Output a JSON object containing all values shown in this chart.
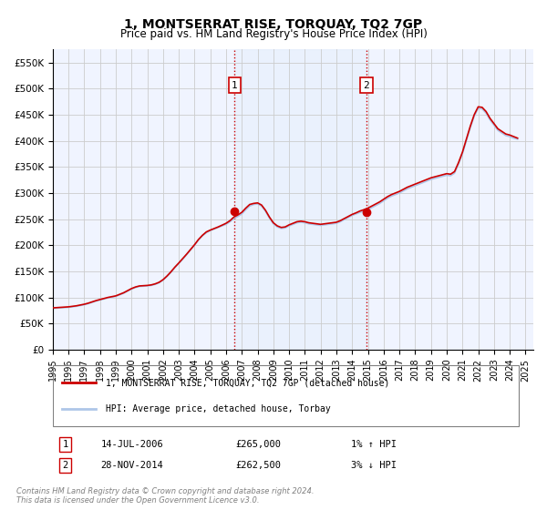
{
  "title": "1, MONTSERRAT RISE, TORQUAY, TQ2 7GP",
  "subtitle": "Price paid vs. HM Land Registry's House Price Index (HPI)",
  "xlim": [
    1995.0,
    2025.5
  ],
  "ylim": [
    0,
    575000
  ],
  "yticks": [
    0,
    50000,
    100000,
    150000,
    200000,
    250000,
    300000,
    350000,
    400000,
    450000,
    500000,
    550000
  ],
  "ytick_labels": [
    "£0",
    "£50K",
    "£100K",
    "£150K",
    "£200K",
    "£250K",
    "£300K",
    "£350K",
    "£400K",
    "£450K",
    "£500K",
    "£550K"
  ],
  "xticks": [
    1995,
    1996,
    1997,
    1998,
    1999,
    2000,
    2001,
    2002,
    2003,
    2004,
    2005,
    2006,
    2007,
    2008,
    2009,
    2010,
    2011,
    2012,
    2013,
    2014,
    2015,
    2016,
    2017,
    2018,
    2019,
    2020,
    2021,
    2022,
    2023,
    2024,
    2025
  ],
  "hpi_color": "#aec6e8",
  "price_color": "#cc0000",
  "marker_color": "#cc0000",
  "sale1_x": 2006.54,
  "sale1_y": 265000,
  "sale1_label": "1",
  "sale2_x": 2014.91,
  "sale2_y": 262500,
  "sale2_label": "2",
  "vline_color": "#cc0000",
  "vline_style": "dotted",
  "grid_color": "#cccccc",
  "bg_color": "#f0f4ff",
  "legend_line1": "1, MONTSERRAT RISE, TORQUAY, TQ2 7GP (detached house)",
  "legend_line2": "HPI: Average price, detached house, Torbay",
  "table_row1": [
    "1",
    "14-JUL-2006",
    "£265,000",
    "1% ↑ HPI"
  ],
  "table_row2": [
    "2",
    "28-NOV-2014",
    "£262,500",
    "3% ↓ HPI"
  ],
  "footer": "Contains HM Land Registry data © Crown copyright and database right 2024.\nThis data is licensed under the Open Government Licence v3.0.",
  "hpi_data": {
    "x": [
      1995.0,
      1995.25,
      1995.5,
      1995.75,
      1996.0,
      1996.25,
      1996.5,
      1996.75,
      1997.0,
      1997.25,
      1997.5,
      1997.75,
      1998.0,
      1998.25,
      1998.5,
      1998.75,
      1999.0,
      1999.25,
      1999.5,
      1999.75,
      2000.0,
      2000.25,
      2000.5,
      2000.75,
      2001.0,
      2001.25,
      2001.5,
      2001.75,
      2002.0,
      2002.25,
      2002.5,
      2002.75,
      2003.0,
      2003.25,
      2003.5,
      2003.75,
      2004.0,
      2004.25,
      2004.5,
      2004.75,
      2005.0,
      2005.25,
      2005.5,
      2005.75,
      2006.0,
      2006.25,
      2006.5,
      2006.75,
      2007.0,
      2007.25,
      2007.5,
      2007.75,
      2008.0,
      2008.25,
      2008.5,
      2008.75,
      2009.0,
      2009.25,
      2009.5,
      2009.75,
      2010.0,
      2010.25,
      2010.5,
      2010.75,
      2011.0,
      2011.25,
      2011.5,
      2011.75,
      2012.0,
      2012.25,
      2012.5,
      2012.75,
      2013.0,
      2013.25,
      2013.5,
      2013.75,
      2014.0,
      2014.25,
      2014.5,
      2014.75,
      2015.0,
      2015.25,
      2015.5,
      2015.75,
      2016.0,
      2016.25,
      2016.5,
      2016.75,
      2017.0,
      2017.25,
      2017.5,
      2017.75,
      2018.0,
      2018.25,
      2018.5,
      2018.75,
      2019.0,
      2019.25,
      2019.5,
      2019.75,
      2020.0,
      2020.25,
      2020.5,
      2020.75,
      2021.0,
      2021.25,
      2021.5,
      2021.75,
      2022.0,
      2022.25,
      2022.5,
      2022.75,
      2023.0,
      2023.25,
      2023.5,
      2023.75,
      2024.0,
      2024.25,
      2024.5
    ],
    "y": [
      79000,
      79500,
      80000,
      80500,
      81000,
      82000,
      83000,
      84500,
      86000,
      88000,
      90500,
      93000,
      95000,
      97000,
      99000,
      100500,
      102000,
      105000,
      108000,
      112000,
      116000,
      119000,
      121000,
      121500,
      122000,
      123000,
      125000,
      128000,
      133000,
      140000,
      148000,
      157000,
      165000,
      173000,
      182000,
      191000,
      200000,
      210000,
      218000,
      224000,
      228000,
      231000,
      234000,
      237000,
      240000,
      245000,
      251000,
      255000,
      260000,
      268000,
      275000,
      278000,
      279000,
      275000,
      265000,
      252000,
      241000,
      235000,
      232000,
      233000,
      237000,
      240000,
      243000,
      244000,
      243000,
      241000,
      240000,
      239000,
      238000,
      239000,
      240000,
      241000,
      242000,
      245000,
      249000,
      253000,
      257000,
      260000,
      263000,
      265000,
      268000,
      272000,
      276000,
      280000,
      285000,
      290000,
      294000,
      297000,
      300000,
      304000,
      308000,
      311000,
      314000,
      317000,
      320000,
      323000,
      326000,
      328000,
      330000,
      332000,
      334000,
      333000,
      338000,
      355000,
      375000,
      400000,
      425000,
      447000,
      462000,
      461000,
      453000,
      440000,
      430000,
      420000,
      415000,
      410000,
      408000,
      405000,
      403000
    ]
  },
  "price_data": {
    "x": [
      1995.0,
      1995.25,
      1995.5,
      1995.75,
      1996.0,
      1996.25,
      1996.5,
      1996.75,
      1997.0,
      1997.25,
      1997.5,
      1997.75,
      1998.0,
      1998.25,
      1998.5,
      1998.75,
      1999.0,
      1999.25,
      1999.5,
      1999.75,
      2000.0,
      2000.25,
      2000.5,
      2000.75,
      2001.0,
      2001.25,
      2001.5,
      2001.75,
      2002.0,
      2002.25,
      2002.5,
      2002.75,
      2003.0,
      2003.25,
      2003.5,
      2003.75,
      2004.0,
      2004.25,
      2004.5,
      2004.75,
      2005.0,
      2005.25,
      2005.5,
      2005.75,
      2006.0,
      2006.25,
      2006.5,
      2006.75,
      2007.0,
      2007.25,
      2007.5,
      2007.75,
      2008.0,
      2008.25,
      2008.5,
      2008.75,
      2009.0,
      2009.25,
      2009.5,
      2009.75,
      2010.0,
      2010.25,
      2010.5,
      2010.75,
      2011.0,
      2011.25,
      2011.5,
      2011.75,
      2012.0,
      2012.25,
      2012.5,
      2012.75,
      2013.0,
      2013.25,
      2013.5,
      2013.75,
      2014.0,
      2014.25,
      2014.5,
      2014.75,
      2015.0,
      2015.25,
      2015.5,
      2015.75,
      2016.0,
      2016.25,
      2016.5,
      2016.75,
      2017.0,
      2017.25,
      2017.5,
      2017.75,
      2018.0,
      2018.25,
      2018.5,
      2018.75,
      2019.0,
      2019.25,
      2019.5,
      2019.75,
      2020.0,
      2020.25,
      2020.5,
      2020.75,
      2021.0,
      2021.25,
      2021.5,
      2021.75,
      2022.0,
      2022.25,
      2022.5,
      2022.75,
      2023.0,
      2023.25,
      2023.5,
      2023.75,
      2024.0,
      2024.25,
      2024.5
    ],
    "y": [
      80000,
      80500,
      81000,
      81500,
      82000,
      83000,
      84000,
      85500,
      87000,
      89000,
      91500,
      94000,
      96000,
      98000,
      100000,
      101500,
      103000,
      106000,
      109000,
      113000,
      117000,
      120000,
      122000,
      122500,
      123000,
      124000,
      126000,
      129000,
      134000,
      141000,
      149000,
      158000,
      166000,
      174500,
      183000,
      192000,
      201000,
      211000,
      219000,
      225500,
      229000,
      232000,
      235000,
      238500,
      242000,
      247000,
      254000,
      258000,
      263000,
      271000,
      278000,
      280000,
      281000,
      277000,
      267000,
      254000,
      243000,
      237000,
      234000,
      235000,
      239000,
      242000,
      245000,
      246000,
      245000,
      243000,
      242000,
      241000,
      240000,
      241000,
      242000,
      243000,
      244000,
      247000,
      251000,
      255000,
      259000,
      262000,
      265500,
      268000,
      271000,
      275000,
      279000,
      283000,
      288000,
      293000,
      297000,
      300000,
      303000,
      307000,
      311000,
      314000,
      317000,
      320000,
      323000,
      326000,
      329000,
      331000,
      333000,
      335000,
      337000,
      336000,
      341000,
      358000,
      378000,
      403000,
      428000,
      450000,
      465000,
      464000,
      456000,
      443000,
      433000,
      423000,
      418000,
      413000,
      411000,
      408000,
      405000
    ]
  }
}
